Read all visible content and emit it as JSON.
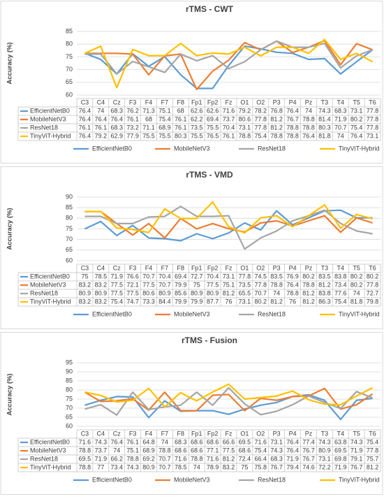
{
  "chart_data": [
    {
      "type": "line",
      "title": "rTMS - CWT",
      "y_label": "Accuracy (%)",
      "categories": [
        "C3",
        "C4",
        "Cz",
        "F3",
        "F4",
        "F7",
        "F8",
        "Fp1",
        "Fp2",
        "Fz",
        "O1",
        "O2",
        "P3",
        "P4",
        "Pz",
        "T3",
        "T4",
        "T5",
        "T6"
      ],
      "ylim": [
        60,
        85
      ],
      "yticks": [
        60,
        65,
        70,
        75,
        80,
        85
      ],
      "grid": true,
      "legend": "bottom",
      "series": [
        {
          "name": "EfficientNetB0",
          "color": "#5b9bd5",
          "values": [
            76.4,
            74,
            68.3,
            76.2,
            71.3,
            75.1,
            68,
            62.6,
            62.6,
            71.6,
            79.2,
            78.2,
            76.8,
            76.4,
            74,
            74.3,
            68.3,
            73.1,
            77.8
          ]
        },
        {
          "name": "MobileNetV3",
          "color": "#ed7d31",
          "values": [
            76.4,
            76.4,
            76.4,
            76.1,
            68,
            75.4,
            76.1,
            62.2,
            69.4,
            73.7,
            80.6,
            77.8,
            81.2,
            76.7,
            78.8,
            81.4,
            71.9,
            80.2,
            77.8
          ]
        },
        {
          "name": "ResNet18",
          "color": "#a5a5a5",
          "values": [
            76.1,
            76.1,
            68.3,
            73.2,
            71.1,
            68.9,
            76.1,
            73.5,
            75.5,
            70.4,
            73.1,
            77.8,
            81.2,
            78.8,
            78.8,
            80.3,
            70.7,
            75.4,
            77.8
          ]
        },
        {
          "name": "TinyViT-Hybrid",
          "color": "#ffc000",
          "values": [
            76.4,
            79.2,
            62.9,
            77.9,
            75.5,
            75.5,
            80.3,
            75.5,
            76.5,
            76.1,
            78.8,
            75.4,
            78.8,
            78.8,
            76.4,
            81.8,
            74,
            76.4,
            73.1
          ]
        }
      ]
    },
    {
      "type": "line",
      "title": "rTMS - VMD",
      "y_label": "Accuracy (%)",
      "categories": [
        "C3",
        "C4",
        "Cz",
        "F3",
        "F4",
        "F7",
        "F8",
        "Fp1",
        "Fp2",
        "Fz",
        "O1",
        "O2",
        "P3",
        "P4",
        "Pz",
        "T3",
        "T4",
        "T5",
        "T6"
      ],
      "ylim": [
        60,
        90
      ],
      "yticks": [
        60,
        65,
        70,
        75,
        80,
        85,
        90
      ],
      "grid": true,
      "legend": "bottom",
      "series": [
        {
          "name": "EfficientNetB0",
          "color": "#5b9bd5",
          "values": [
            75,
            78.5,
            71.9,
            76.6,
            70.7,
            70.4,
            69.4,
            72.7,
            70.4,
            73.1,
            77.8,
            74.5,
            83.5,
            76.9,
            80.2,
            83.5,
            83.8,
            80.2,
            80.2
          ]
        },
        {
          "name": "MobileNetV3",
          "color": "#ed7d31",
          "values": [
            83.2,
            83.2,
            77.5,
            72.1,
            77.5,
            70.7,
            79.9,
            75,
            77.5,
            75.1,
            73.5,
            77.8,
            78.8,
            76.4,
            78.8,
            81.2,
            73.4,
            80.2,
            77.8
          ]
        },
        {
          "name": "ResNet18",
          "color": "#a5a5a5",
          "values": [
            80.9,
            80.9,
            77.5,
            77.5,
            80.6,
            80.9,
            85.6,
            80.9,
            80.9,
            81.2,
            65.5,
            70.7,
            74,
            78.8,
            81.2,
            83.8,
            77.6,
            74,
            72.7
          ]
        },
        {
          "name": "TinyViT-Hybrid",
          "color": "#ffc000",
          "values": [
            83.2,
            83.2,
            75.4,
            74.7,
            73.3,
            84.4,
            79.9,
            79.9,
            87.7,
            76,
            73.1,
            80.2,
            81.2,
            76,
            81.2,
            86.3,
            75.4,
            81.8,
            79.8
          ]
        }
      ]
    },
    {
      "type": "line",
      "title": "rTMS - Fusion",
      "y_label": "Accuracy (%)",
      "categories": [
        "C3",
        "C4",
        "Cz",
        "F3",
        "F4",
        "F7",
        "F8",
        "Fp1",
        "Fp2",
        "Fz",
        "O1",
        "O2",
        "P3",
        "P4",
        "Pz",
        "T3",
        "T4",
        "T5",
        "T6"
      ],
      "ylim": [
        60,
        95
      ],
      "yticks": [
        60,
        65,
        70,
        75,
        80,
        85,
        90,
        95
      ],
      "grid": true,
      "legend": "bottom",
      "series": [
        {
          "name": "EfficientNetB0",
          "color": "#5b9bd5",
          "values": [
            71.6,
            74.3,
            76.4,
            76.1,
            64.8,
            74,
            68.3,
            68.6,
            68.6,
            66.6,
            69.5,
            71.6,
            73.1,
            76.4,
            77.4,
            74.3,
            63.8,
            74.3,
            75.4
          ]
        },
        {
          "name": "MobileNetV3",
          "color": "#ed7d31",
          "values": [
            78.8,
            73.7,
            74,
            75.1,
            68.9,
            78.8,
            68.6,
            68.6,
            77.1,
            77.5,
            68.6,
            75.4,
            74.3,
            76.4,
            76.7,
            80.9,
            69.5,
            71.9,
            77.8
          ]
        },
        {
          "name": "ResNet18",
          "color": "#a5a5a5",
          "values": [
            69.5,
            71.9,
            66.2,
            78.8,
            69.2,
            70.7,
            71.6,
            78.8,
            71.6,
            81.2,
            72.4,
            66.4,
            68.3,
            71.9,
            76.7,
            73.1,
            69.8,
            79.1,
            75.7
          ]
        },
        {
          "name": "TinyViT-Hybrid",
          "color": "#ffc000",
          "values": [
            78.8,
            77,
            73.4,
            74.3,
            80.9,
            70.7,
            78.5,
            74,
            78.9,
            83.2,
            75,
            75.8,
            76.7,
            79.4,
            74.6,
            72.2,
            71.9,
            76.7,
            81.2
          ]
        }
      ]
    }
  ]
}
